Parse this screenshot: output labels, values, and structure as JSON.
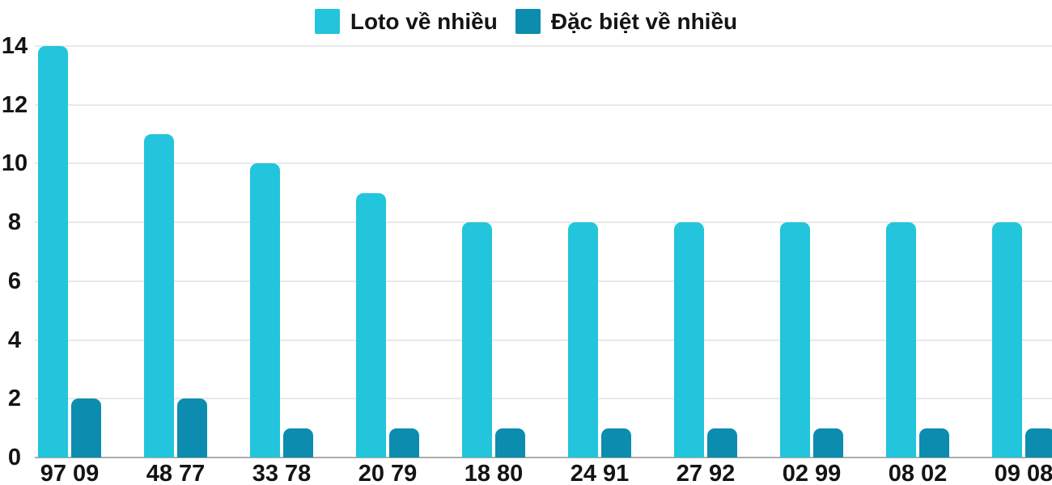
{
  "chart_data": {
    "type": "bar",
    "title": "",
    "xlabel": "",
    "ylabel": "",
    "categories": [
      "97 09",
      "48 77",
      "33 78",
      "20 79",
      "18 80",
      "24 91",
      "27 92",
      "02 99",
      "08 02",
      "09 08"
    ],
    "series": [
      {
        "name": "Loto về nhiều",
        "color": "#22C5DB",
        "values": [
          14,
          11,
          10,
          9,
          8,
          8,
          8,
          8,
          8,
          8
        ]
      },
      {
        "name": "Đặc biệt về nhiều",
        "color": "#0C8CAE",
        "values": [
          2,
          2,
          1,
          1,
          1,
          1,
          1,
          1,
          1,
          1
        ]
      }
    ],
    "ylim": [
      0,
      14
    ],
    "y_ticks": [
      0,
      2,
      4,
      6,
      8,
      10,
      12,
      14
    ],
    "grid": true,
    "legend_position": "top-center",
    "colors": {
      "gridline": "#E9E9E9",
      "baseline": "#ACACAC",
      "text": "#141414",
      "background": "#FFFFFF"
    }
  }
}
